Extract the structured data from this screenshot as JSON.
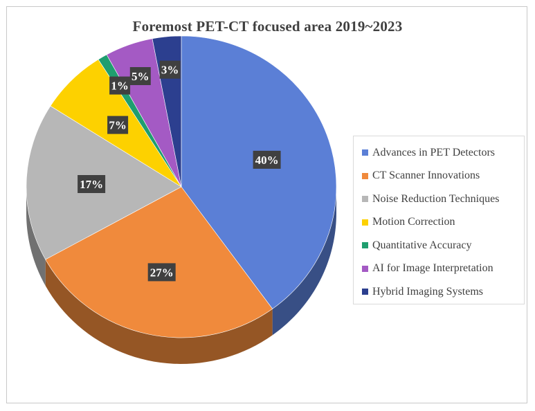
{
  "chart_data": {
    "type": "pie",
    "title": "Foremost PET-CT focused area 2019~2023",
    "legend_position": "right",
    "slices": [
      {
        "label": "Advances in PET Detectors",
        "value": 40,
        "display": "40%",
        "color": "#5b7fd6"
      },
      {
        "label": "CT Scanner Innovations",
        "value": 27,
        "display": "27%",
        "color": "#f08a3c"
      },
      {
        "label": "Noise Reduction Techniques",
        "value": 17,
        "display": "17%",
        "color": "#b7b7b7"
      },
      {
        "label": "Motion Correction",
        "value": 7,
        "display": "7%",
        "color": "#fdd100"
      },
      {
        "label": "Quantitative Accuracy",
        "value": 1,
        "display": "1%",
        "color": "#1f9e6f"
      },
      {
        "label": "AI for Image Interpretation",
        "value": 5,
        "display": "5%",
        "color": "#a45ac4"
      },
      {
        "label": "Hybrid Imaging Systems",
        "value": 3,
        "display": "3%",
        "color": "#2c3f8f"
      }
    ]
  }
}
